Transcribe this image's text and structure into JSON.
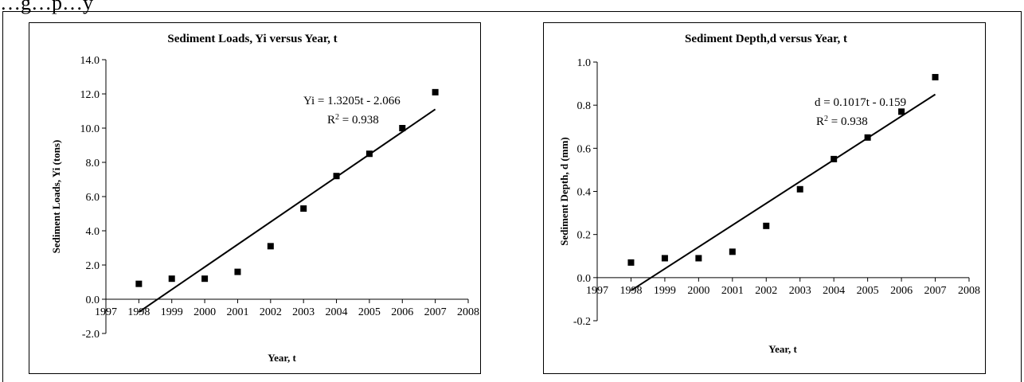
{
  "caption_text": "…g…p…y",
  "chart_data": [
    {
      "type": "scatter",
      "title": "Sediment Loads, Yi  versus Year, t",
      "xlabel": "Year, t",
      "ylabel": "Sediment Loads, Yi (tons)",
      "xlim": [
        1997,
        2008
      ],
      "ylim": [
        -2,
        14
      ],
      "x_ticks": [
        "1997",
        "1998",
        "1999",
        "2000",
        "2001",
        "2002",
        "2003",
        "2004",
        "2005",
        "2006",
        "2007",
        "2008"
      ],
      "y_ticks": [
        "-2.0",
        "0.0",
        "2.0",
        "4.0",
        "6.0",
        "8.0",
        "10.0",
        "12.0",
        "14.0"
      ],
      "grid": false,
      "series": [
        {
          "x": [
            1998,
            1999,
            2000,
            2001,
            2002,
            2003,
            2004,
            2005,
            2006,
            2007
          ],
          "y": [
            0.9,
            1.2,
            1.2,
            1.6,
            3.1,
            5.3,
            7.2,
            8.5,
            10.0,
            12.1
          ]
        }
      ],
      "trendline": {
        "x": [
          1998,
          2007
        ],
        "y": [
          -0.75,
          11.1
        ]
      },
      "annotations": {
        "equation": "Yi = 1.3205t - 2.066",
        "r2_prefix": "R",
        "r2_sup": "2",
        "r2_value": " = 0.938"
      },
      "marker_color": "#000000"
    },
    {
      "type": "scatter",
      "title": "Sediment Depth,d versus Year, t",
      "xlabel": "Year, t",
      "ylabel": "Sediment Depth, d (mm)",
      "xlim": [
        1997,
        2008
      ],
      "ylim": [
        -0.2,
        1.0
      ],
      "x_ticks": [
        "1997",
        "1998",
        "1999",
        "2000",
        "2001",
        "2002",
        "2003",
        "2004",
        "2005",
        "2006",
        "2007",
        "2008"
      ],
      "y_ticks": [
        "-0.2",
        "0.0",
        "0.2",
        "0.4",
        "0.6",
        "0.8",
        "1.0"
      ],
      "grid": false,
      "series": [
        {
          "x": [
            1998,
            1999,
            2000,
            2001,
            2002,
            2003,
            2004,
            2005,
            2006,
            2007
          ],
          "y": [
            0.07,
            0.09,
            0.09,
            0.12,
            0.24,
            0.41,
            0.55,
            0.65,
            0.77,
            0.93
          ]
        }
      ],
      "trendline": {
        "x": [
          1998,
          2007
        ],
        "y": [
          -0.06,
          0.85
        ]
      },
      "annotations": {
        "equation": "d = 0.1017t - 0.159",
        "r2_prefix": "R",
        "r2_sup": "2",
        "r2_value": " = 0.938"
      },
      "marker_color": "#000000"
    }
  ]
}
